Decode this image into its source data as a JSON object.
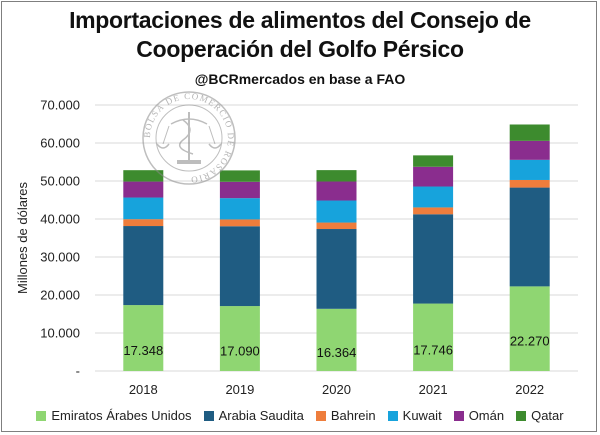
{
  "chart_data": {
    "type": "bar",
    "stacked": true,
    "title_line1": "Importaciones de alimentos del Consejo de",
    "title_line2": "Cooperación del Golfo Pérsico",
    "subtitle": "@BCRmercados en base a FAO",
    "ylabel": "Millones de dólares",
    "ylim": [
      0,
      70000
    ],
    "yticks": [
      "-",
      "10.000",
      "20.000",
      "30.000",
      "40.000",
      "50.000",
      "60.000",
      "70.000"
    ],
    "categories": [
      "2018",
      "2019",
      "2020",
      "2021",
      "2022"
    ],
    "series": [
      {
        "name": "Emiratos Árabes Unidos",
        "color": "#8fd672",
        "values": [
          17348,
          17090,
          16364,
          17746,
          22270
        ],
        "labels": [
          "17.348",
          "17.090",
          "16.364",
          "17.746",
          "22.270"
        ]
      },
      {
        "name": "Arabia Saudita",
        "color": "#1f5c82",
        "values": [
          20800,
          21000,
          21000,
          23500,
          26000
        ]
      },
      {
        "name": "Bahrein",
        "color": "#ee7d3c",
        "values": [
          1800,
          1800,
          1700,
          1800,
          2000
        ]
      },
      {
        "name": "Kuwait",
        "color": "#17a3dc",
        "values": [
          5700,
          5600,
          5800,
          5500,
          5300
        ]
      },
      {
        "name": "Omán",
        "color": "#8a2d8e",
        "values": [
          4200,
          4300,
          5000,
          5200,
          5000
        ]
      },
      {
        "name": "Qatar",
        "color": "#3d8b2e",
        "values": [
          3000,
          3000,
          3000,
          3000,
          4300
        ]
      }
    ],
    "grid": true,
    "legend_position": "bottom",
    "watermark": "BOLSA DE COMERCIO DE ROSARIO"
  }
}
